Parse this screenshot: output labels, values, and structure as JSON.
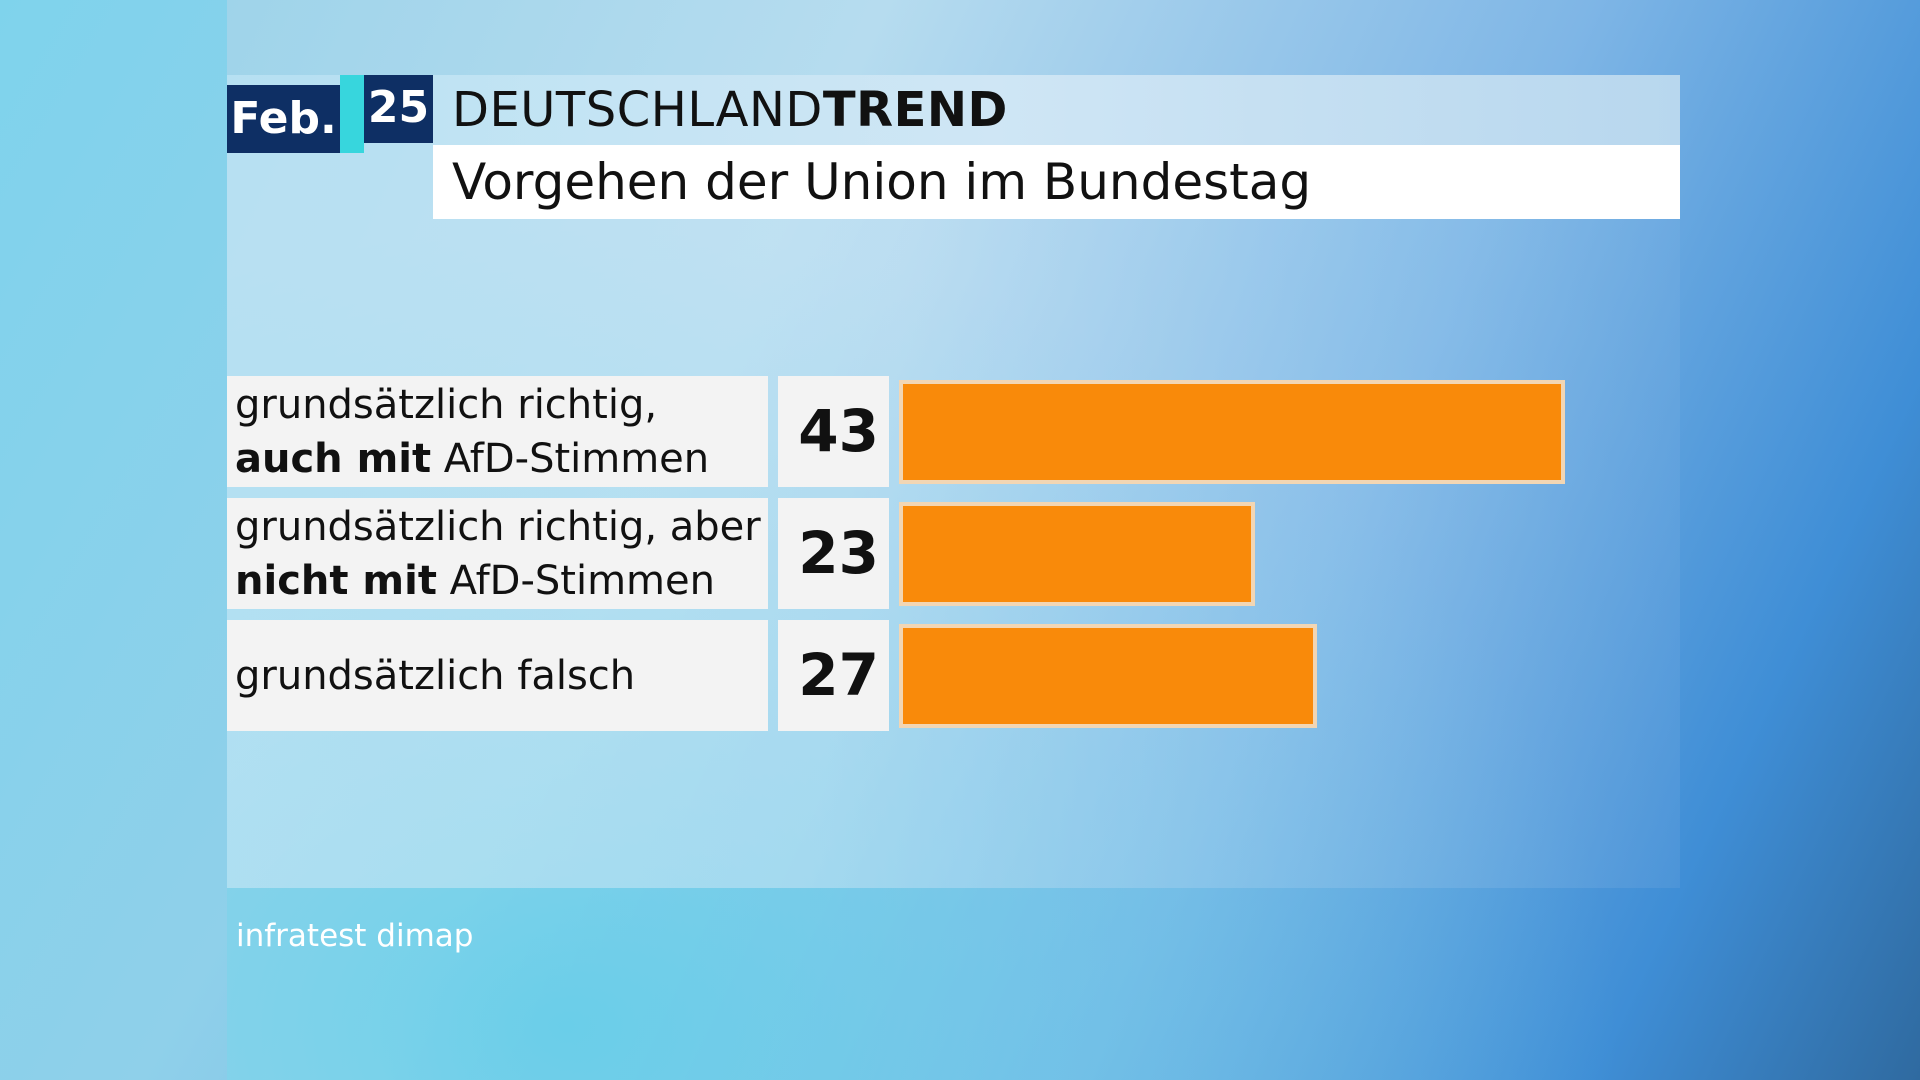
{
  "header": {
    "month": "Feb.",
    "year": "25",
    "brand_regular": "DEUTSCHLAND",
    "brand_bold": "TREND",
    "title": "Vorgehen der Union im Bundestag"
  },
  "rows": [
    {
      "line1": "grundsätzlich richtig,",
      "line2_bold": "auch mit",
      "line2_rest": " AfD-Stimmen",
      "value_label": "43"
    },
    {
      "line1": "grundsätzlich richtig, aber",
      "line2_bold": "nicht mit",
      "line2_rest": " AfD-Stimmen",
      "value_label": "23"
    },
    {
      "line1": "grundsätzlich falsch",
      "line2_bold": "",
      "line2_rest": "",
      "value_label": "27"
    }
  ],
  "chart_data": {
    "type": "bar",
    "orientation": "horizontal",
    "title": "Vorgehen der Union im Bundestag",
    "categories": [
      "grundsätzlich richtig, auch mit AfD-Stimmen",
      "grundsätzlich richtig, aber nicht mit AfD-Stimmen",
      "grundsätzlich falsch"
    ],
    "values": [
      43,
      23,
      27
    ],
    "bar_color": "#f98a0a",
    "xlim": [
      0,
      43
    ],
    "grid": false
  },
  "source": "infratest dimap",
  "colors": {
    "badge": "#0e2f64",
    "accent": "#37d6dd",
    "bar": "#f98a0a",
    "label_bg": "#f3f3f3"
  }
}
